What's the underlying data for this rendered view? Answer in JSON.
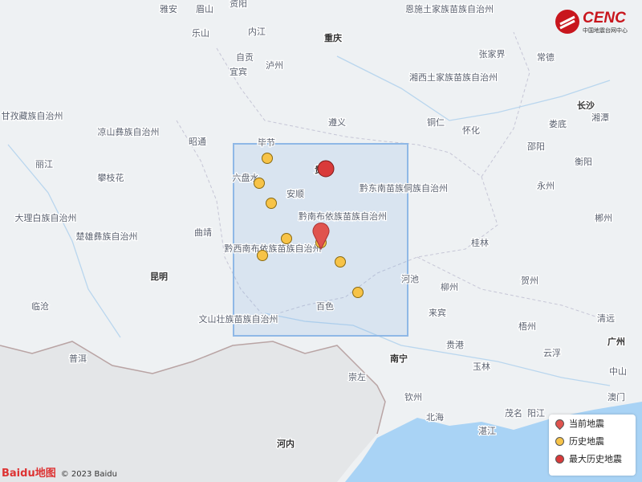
{
  "places": [
    "雅安",
    "眉山",
    "资阳",
    "重庆",
    "内江",
    "乐山",
    "自贡",
    "泸州",
    "宜宾",
    "恩施土家族苗族自治州",
    "张家界",
    "常德",
    "湘西土家族苗族自治州",
    "长沙",
    "甘孜藏族自治州",
    "凉山彝族自治州",
    "遵义",
    "铜仁",
    "怀化",
    "娄底",
    "湘潭",
    "昭通",
    "毕节",
    "邵阳",
    "丽江",
    "攀枝花",
    "六盘水",
    "贵阳",
    "安顺",
    "黔东南苗族侗族自治州",
    "永州",
    "衡阳",
    "大理白族自治州",
    "黔南布依族苗族自治州",
    "郴州",
    "楚雄彝族自治州",
    "曲靖",
    "桂林",
    "黔西南布依族苗族自治州",
    "昆明",
    "河池",
    "柳州",
    "贺州",
    "临沧",
    "来宾",
    "百色",
    "梧州",
    "清远",
    "文山壮族苗族自治州",
    "普洱",
    "南宁",
    "贵港",
    "玉林",
    "云浮",
    "广州",
    "中山",
    "崇左",
    "钦州",
    "澳门",
    "北海",
    "阳江",
    "茂名",
    "湛江",
    "河内"
  ],
  "logo": {
    "name": "CENC",
    "subtitle": "中国地震台网中心"
  },
  "legend": [
    "当前地震",
    "历史地震",
    "最大历史地震"
  ],
  "attribution": {
    "brand": "Baidu地图",
    "copyright": "© 2023 Baidu"
  }
}
